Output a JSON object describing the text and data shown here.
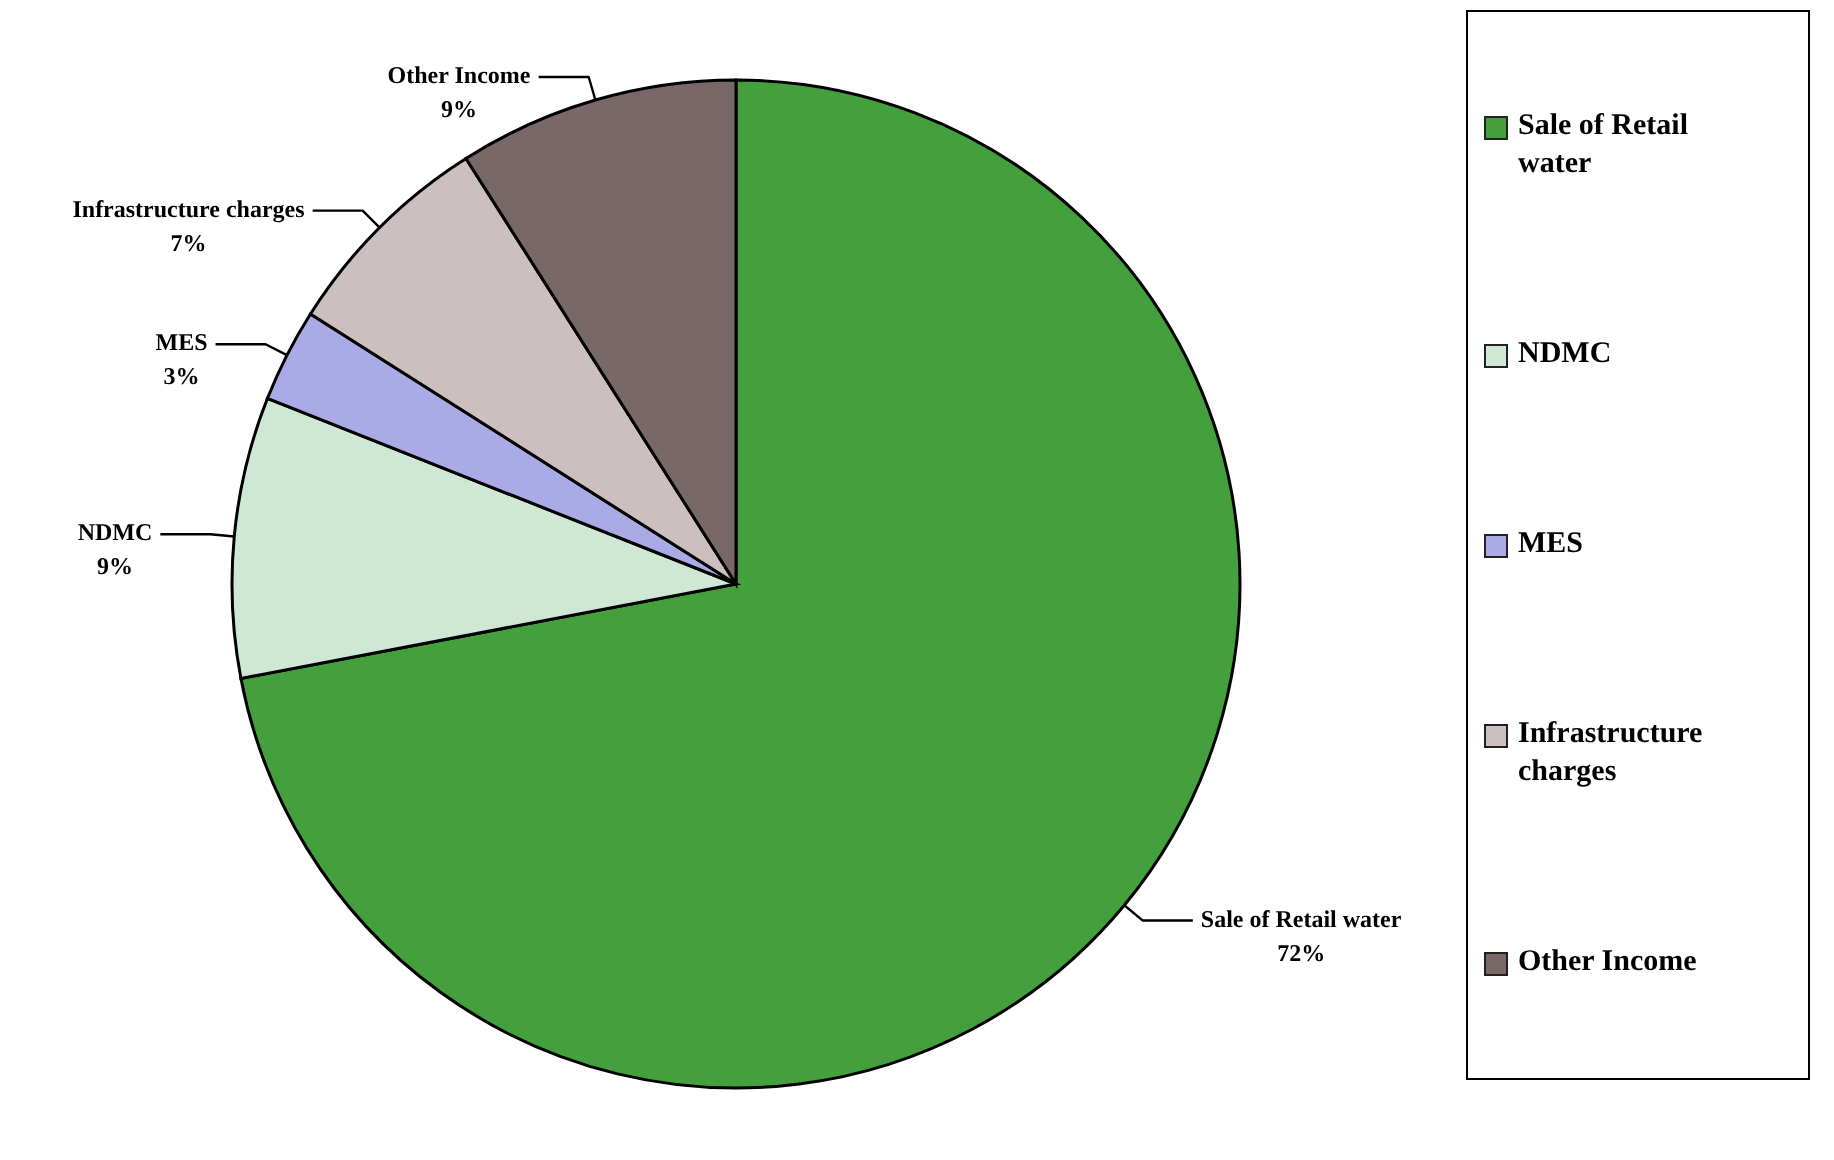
{
  "chart_data": {
    "type": "pie",
    "categories": [
      "Sale of Retail water",
      "NDMC",
      "MES",
      "Infrastructure charges",
      "Other Income"
    ],
    "values": [
      72,
      9,
      3,
      7,
      9
    ],
    "colors": [
      "#43a03c",
      "#cfe8d6",
      "#aaaae6",
      "#cbbfc0",
      "#7a6868"
    ],
    "value_labels": [
      "72%",
      "9%",
      "3%",
      "7%",
      "9%"
    ],
    "legend": "right"
  }
}
